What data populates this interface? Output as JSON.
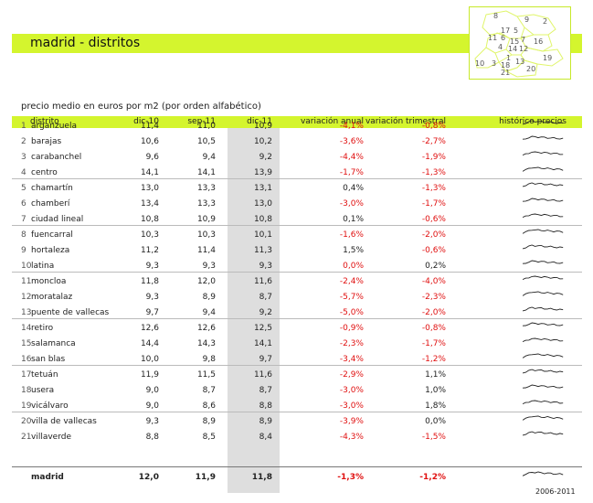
{
  "title": "madrid - distritos",
  "subtitle": "precio medio en euros por m2 (por orden alfabético)",
  "map_numbers": [
    "8",
    "9",
    "2",
    "17",
    "5",
    "11",
    "6",
    "15",
    "7",
    "16",
    "4",
    "14",
    "12",
    "19",
    "1",
    "13",
    "10",
    "3",
    "18",
    "20",
    "21"
  ],
  "headers": {
    "distrito": "distrito",
    "dic10": "dic-10",
    "sep11": "sep-11",
    "dic11": "dic-11",
    "var_anual": "variación anual",
    "var_trim": "variación trimestral",
    "historico": "histórico precios"
  },
  "rows": [
    {
      "num": "1",
      "name": "arganzuela",
      "d10": "11,4",
      "s11": "11,0",
      "d11": "10,9",
      "va": "-4,1%",
      "vt": "-0,8%",
      "vaneg": true,
      "vtneg": true
    },
    {
      "num": "2",
      "name": "barajas",
      "d10": "10,6",
      "s11": "10,5",
      "d11": "10,2",
      "va": "-3,6%",
      "vt": "-2,7%",
      "vaneg": true,
      "vtneg": true
    },
    {
      "num": "3",
      "name": "carabanchel",
      "d10": "9,6",
      "s11": "9,4",
      "d11": "9,2",
      "va": "-4,4%",
      "vt": "-1,9%",
      "vaneg": true,
      "vtneg": true
    },
    {
      "num": "4",
      "name": "centro",
      "d10": "14,1",
      "s11": "14,1",
      "d11": "13,9",
      "va": "-1,7%",
      "vt": "-1,3%",
      "vaneg": true,
      "vtneg": true
    },
    {
      "num": "5",
      "name": "chamartín",
      "d10": "13,0",
      "s11": "13,3",
      "d11": "13,1",
      "va": "0,4%",
      "vt": "-1,3%",
      "vaneg": false,
      "vtneg": true
    },
    {
      "num": "6",
      "name": "chamberí",
      "d10": "13,4",
      "s11": "13,3",
      "d11": "13,0",
      "va": "-3,0%",
      "vt": "-1,7%",
      "vaneg": true,
      "vtneg": true
    },
    {
      "num": "7",
      "name": "ciudad lineal",
      "d10": "10,8",
      "s11": "10,9",
      "d11": "10,8",
      "va": "0,1%",
      "vt": "-0,6%",
      "vaneg": false,
      "vtneg": true
    },
    {
      "num": "8",
      "name": "fuencarral",
      "d10": "10,3",
      "s11": "10,3",
      "d11": "10,1",
      "va": "-1,6%",
      "vt": "-2,0%",
      "vaneg": true,
      "vtneg": true
    },
    {
      "num": "9",
      "name": "hortaleza",
      "d10": "11,2",
      "s11": "11,4",
      "d11": "11,3",
      "va": "1,5%",
      "vt": "-0,6%",
      "vaneg": false,
      "vtneg": true
    },
    {
      "num": "10",
      "name": "latina",
      "d10": "9,3",
      "s11": "9,3",
      "d11": "9,3",
      "va": "0,0%",
      "vt": "0,2%",
      "vaneg": true,
      "vtneg": false
    },
    {
      "num": "11",
      "name": "moncloa",
      "d10": "11,8",
      "s11": "12,0",
      "d11": "11,6",
      "va": "-2,4%",
      "vt": "-4,0%",
      "vaneg": true,
      "vtneg": true
    },
    {
      "num": "12",
      "name": "moratalaz",
      "d10": "9,3",
      "s11": "8,9",
      "d11": "8,7",
      "va": "-5,7%",
      "vt": "-2,3%",
      "vaneg": true,
      "vtneg": true
    },
    {
      "num": "13",
      "name": "puente de vallecas",
      "d10": "9,7",
      "s11": "9,4",
      "d11": "9,2",
      "va": "-5,0%",
      "vt": "-2,0%",
      "vaneg": true,
      "vtneg": true
    },
    {
      "num": "14",
      "name": "retiro",
      "d10": "12,6",
      "s11": "12,6",
      "d11": "12,5",
      "va": "-0,9%",
      "vt": "-0,8%",
      "vaneg": true,
      "vtneg": true
    },
    {
      "num": "15",
      "name": "salamanca",
      "d10": "14,4",
      "s11": "14,3",
      "d11": "14,1",
      "va": "-2,3%",
      "vt": "-1,7%",
      "vaneg": true,
      "vtneg": true
    },
    {
      "num": "16",
      "name": "san blas",
      "d10": "10,0",
      "s11": "9,8",
      "d11": "9,7",
      "va": "-3,4%",
      "vt": "-1,2%",
      "vaneg": true,
      "vtneg": true
    },
    {
      "num": "17",
      "name": "tetuán",
      "d10": "11,9",
      "s11": "11,5",
      "d11": "11,6",
      "va": "-2,9%",
      "vt": "1,1%",
      "vaneg": true,
      "vtneg": false
    },
    {
      "num": "18",
      "name": "usera",
      "d10": "9,0",
      "s11": "8,7",
      "d11": "8,7",
      "va": "-3,0%",
      "vt": "1,0%",
      "vaneg": true,
      "vtneg": false
    },
    {
      "num": "19",
      "name": "vicálvaro",
      "d10": "9,0",
      "s11": "8,6",
      "d11": "8,8",
      "va": "-3,0%",
      "vt": "1,8%",
      "vaneg": true,
      "vtneg": false
    },
    {
      "num": "20",
      "name": "villa de vallecas",
      "d10": "9,3",
      "s11": "8,9",
      "d11": "8,9",
      "va": "-3,9%",
      "vt": "0,0%",
      "vaneg": true,
      "vtneg": false
    },
    {
      "num": "21",
      "name": "villaverde",
      "d10": "8,8",
      "s11": "8,5",
      "d11": "8,4",
      "va": "-4,3%",
      "vt": "-1,5%",
      "vaneg": true,
      "vtneg": true
    }
  ],
  "total": {
    "name": "madrid",
    "d10": "12,0",
    "s11": "11,9",
    "d11": "11,8",
    "va": "-1,3%",
    "vt": "-1,2%"
  },
  "footer": "2006-2011",
  "colors": {
    "accent": "#d4f52e",
    "negative": "#e01010",
    "band": "#dedede"
  }
}
